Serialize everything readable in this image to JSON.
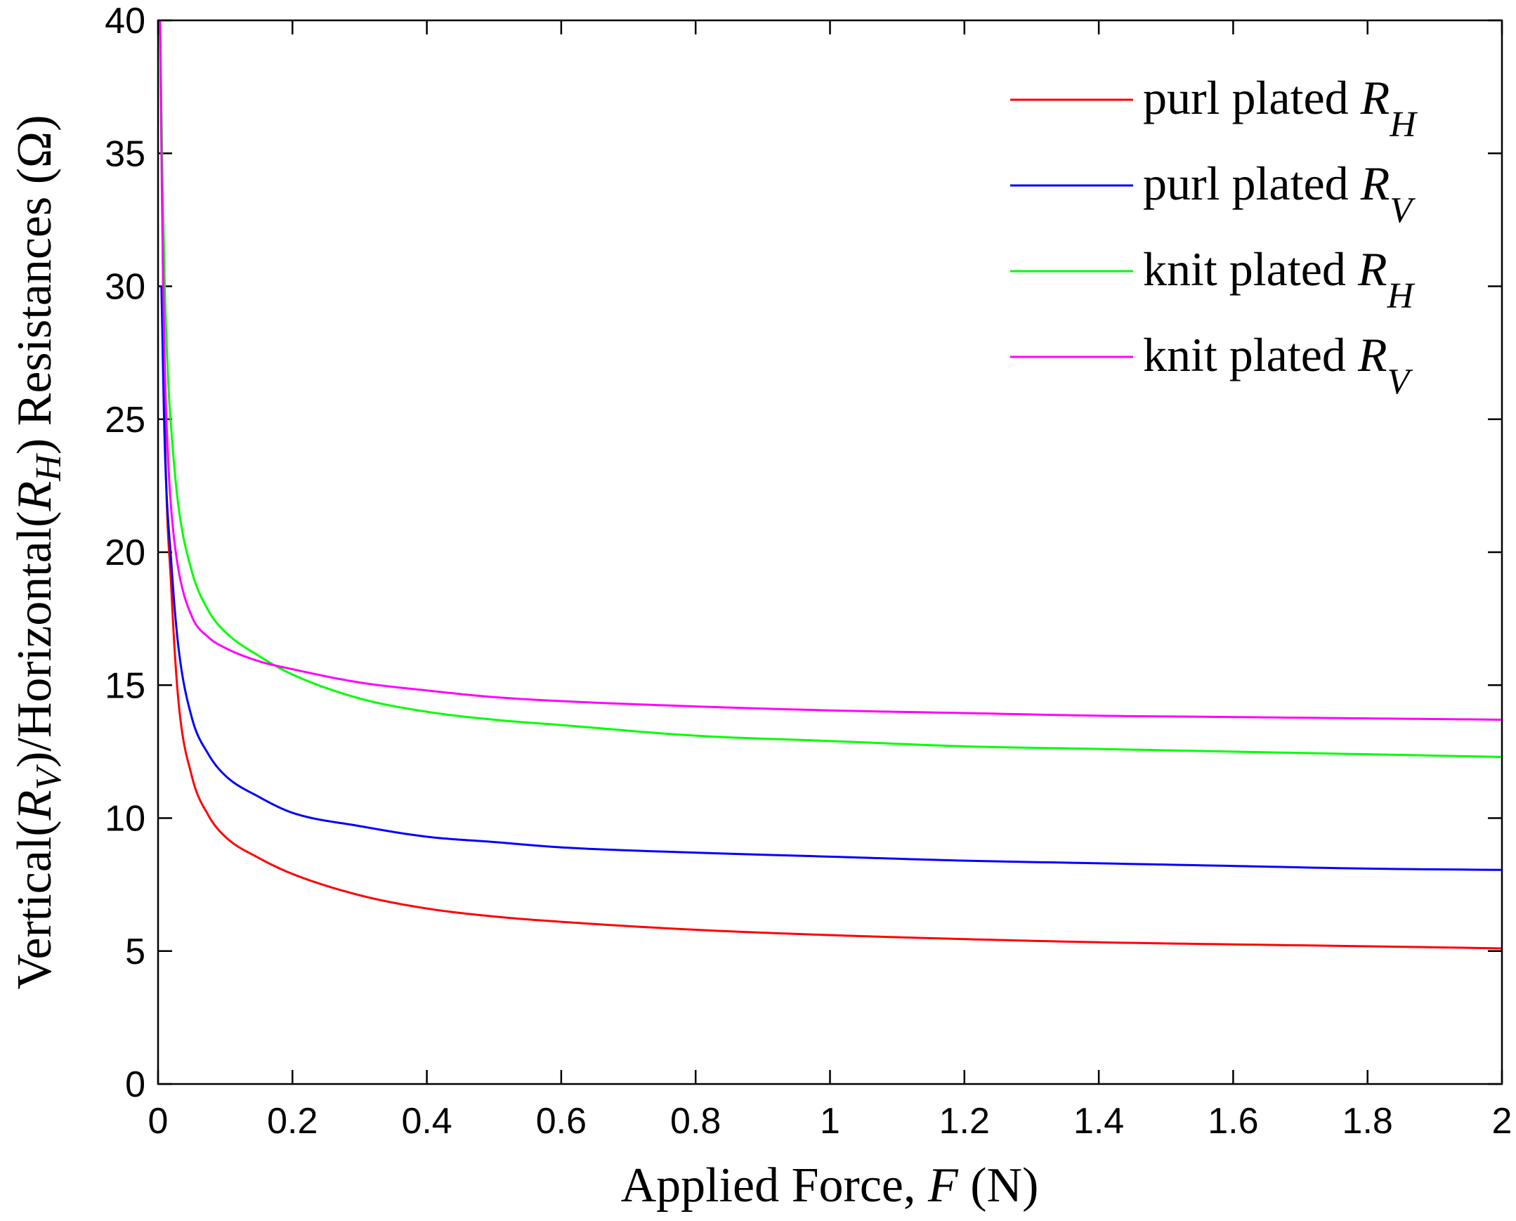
{
  "chart_data": {
    "type": "line",
    "title": "",
    "xlabel": {
      "prefix": "Applied Force, ",
      "var": "F",
      "suffix": " (N)"
    },
    "ylabel": {
      "p1": "Vertical(",
      "r1": "R",
      "s1": "V",
      "p2": ")/Horizontal(",
      "r2": "R",
      "s2": "H",
      "p3": ") Resistances (Ω)"
    },
    "xlim": [
      0,
      2
    ],
    "ylim": [
      0,
      40
    ],
    "xticks": [
      0,
      0.2,
      0.4,
      0.6,
      0.8,
      1,
      1.2,
      1.4,
      1.6,
      1.8,
      2
    ],
    "xtick_labels": [
      "0",
      "0.2",
      "0.4",
      "0.6",
      "0.8",
      "1",
      "1.2",
      "1.4",
      "1.6",
      "1.8",
      "2"
    ],
    "yticks": [
      0,
      5,
      10,
      15,
      20,
      25,
      30,
      35,
      40
    ],
    "ytick_labels": [
      "0",
      "5",
      "10",
      "15",
      "20",
      "25",
      "30",
      "35",
      "40"
    ],
    "legend_position": "top-right",
    "series": [
      {
        "name": "purl plated R_H",
        "label_text": "purl plated ",
        "label_var": "R",
        "label_sub": "H",
        "color": "#ff0000",
        "x": [
          0.005,
          0.01,
          0.02,
          0.03,
          0.05,
          0.075,
          0.1,
          0.15,
          0.2,
          0.3,
          0.4,
          0.5,
          0.6,
          0.8,
          1.0,
          1.2,
          1.4,
          1.6,
          1.8,
          2.0
        ],
        "y": [
          36,
          25,
          18.5,
          14.5,
          11.6,
          10.1,
          9.3,
          8.5,
          7.9,
          7.1,
          6.6,
          6.3,
          6.1,
          5.8,
          5.6,
          5.45,
          5.33,
          5.25,
          5.18,
          5.1
        ]
      },
      {
        "name": "purl plated R_V",
        "label_text": "purl plated ",
        "label_var": "R",
        "label_sub": "V",
        "color": "#0000ff",
        "x": [
          0.005,
          0.01,
          0.02,
          0.03,
          0.05,
          0.075,
          0.1,
          0.15,
          0.2,
          0.3,
          0.4,
          0.5,
          0.6,
          0.8,
          1.0,
          1.2,
          1.4,
          1.6,
          1.8,
          2.0
        ],
        "y": [
          30,
          24,
          19.5,
          16.5,
          13.8,
          12.4,
          11.6,
          10.8,
          10.2,
          9.7,
          9.3,
          9.1,
          8.9,
          8.7,
          8.55,
          8.4,
          8.3,
          8.2,
          8.1,
          8.05
        ]
      },
      {
        "name": "knit plated R_H",
        "label_text": "knit plated ",
        "label_var": "R",
        "label_sub": "H",
        "color": "#00ff00",
        "x": [
          0.003,
          0.006,
          0.01,
          0.015,
          0.02,
          0.03,
          0.05,
          0.075,
          0.1,
          0.15,
          0.2,
          0.3,
          0.4,
          0.5,
          0.6,
          0.8,
          1.0,
          1.2,
          1.4,
          1.6,
          1.8,
          2.0
        ],
        "y": [
          40,
          35,
          30,
          26.5,
          24.5,
          21.8,
          19.3,
          17.8,
          17.0,
          16.1,
          15.4,
          14.5,
          14.0,
          13.7,
          13.5,
          13.1,
          12.9,
          12.7,
          12.6,
          12.5,
          12.4,
          12.3
        ]
      },
      {
        "name": "knit plated R_V",
        "label_text": "knit plated ",
        "label_var": "R",
        "label_sub": "V",
        "color": "#ff00ff",
        "x": [
          0.003,
          0.006,
          0.01,
          0.015,
          0.02,
          0.03,
          0.05,
          0.075,
          0.1,
          0.15,
          0.2,
          0.3,
          0.4,
          0.5,
          0.6,
          0.8,
          1.0,
          1.2,
          1.4,
          1.6,
          1.8,
          2.0
        ],
        "y": [
          40,
          33,
          27,
          23.5,
          21.5,
          19.4,
          17.6,
          16.8,
          16.4,
          15.9,
          15.6,
          15.1,
          14.8,
          14.55,
          14.4,
          14.2,
          14.05,
          13.95,
          13.85,
          13.8,
          13.75,
          13.7
        ]
      }
    ]
  }
}
